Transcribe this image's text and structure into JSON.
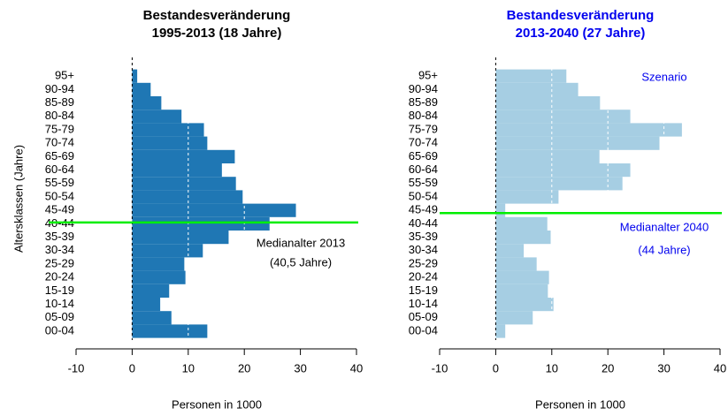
{
  "chart_data": [
    {
      "type": "bar",
      "orientation": "horizontal",
      "title": "Bestandesveränderung",
      "subtitle": "1995-2013 (18 Jahre)",
      "title_color": "#000000",
      "ylabel": "Altersklassen (Jahre)",
      "xlabel": "Personen in 1000",
      "xlim": [
        -10,
        40
      ],
      "xticks": [
        -10,
        0,
        10,
        20,
        30,
        40
      ],
      "color": "#1f77b4",
      "categories": [
        "00-04",
        "05-09",
        "10-14",
        "15-19",
        "20-24",
        "25-29",
        "30-34",
        "35-39",
        "40-44",
        "45-49",
        "50-54",
        "55-59",
        "60-64",
        "65-69",
        "70-74",
        "75-79",
        "80-84",
        "85-89",
        "90-94",
        "95+"
      ],
      "values": [
        13.4,
        7.0,
        5.0,
        6.6,
        9.5,
        9.3,
        12.6,
        17.2,
        24.5,
        29.2,
        19.7,
        18.5,
        16.0,
        18.3,
        13.4,
        12.8,
        8.8,
        5.2,
        3.3,
        0.9
      ],
      "median_age": 40.5,
      "median_color": "#00ee00",
      "annotations": [
        "Medianalter 2013",
        "(40,5 Jahre)"
      ],
      "annotation_color": "#000000"
    },
    {
      "type": "bar",
      "orientation": "horizontal",
      "title": "Bestandesveränderung",
      "subtitle": "2013-2040 (27 Jahre)",
      "title_color": "#0000ee",
      "xlabel": "Personen in 1000",
      "xlim": [
        -10,
        40
      ],
      "xticks": [
        -10,
        0,
        10,
        20,
        30,
        40
      ],
      "color": "#a6cee3",
      "categories": [
        "00-04",
        "05-09",
        "10-14",
        "15-19",
        "20-24",
        "25-29",
        "30-34",
        "35-39",
        "40-44",
        "45-49",
        "50-54",
        "55-59",
        "60-64",
        "65-69",
        "70-74",
        "75-79",
        "80-84",
        "85-89",
        "90-94",
        "95+"
      ],
      "values": [
        1.7,
        6.6,
        10.3,
        9.3,
        9.5,
        7.3,
        5.0,
        9.8,
        9.2,
        1.7,
        11.2,
        22.6,
        24.0,
        18.5,
        29.2,
        33.2,
        24.0,
        18.6,
        14.7,
        12.6
      ],
      "median_age": 44,
      "median_color": "#00ee00",
      "annotations": [
        "Szenario",
        "Medianalter 2040",
        "(44 Jahre)"
      ],
      "annotation_color": "#0000ee"
    }
  ]
}
